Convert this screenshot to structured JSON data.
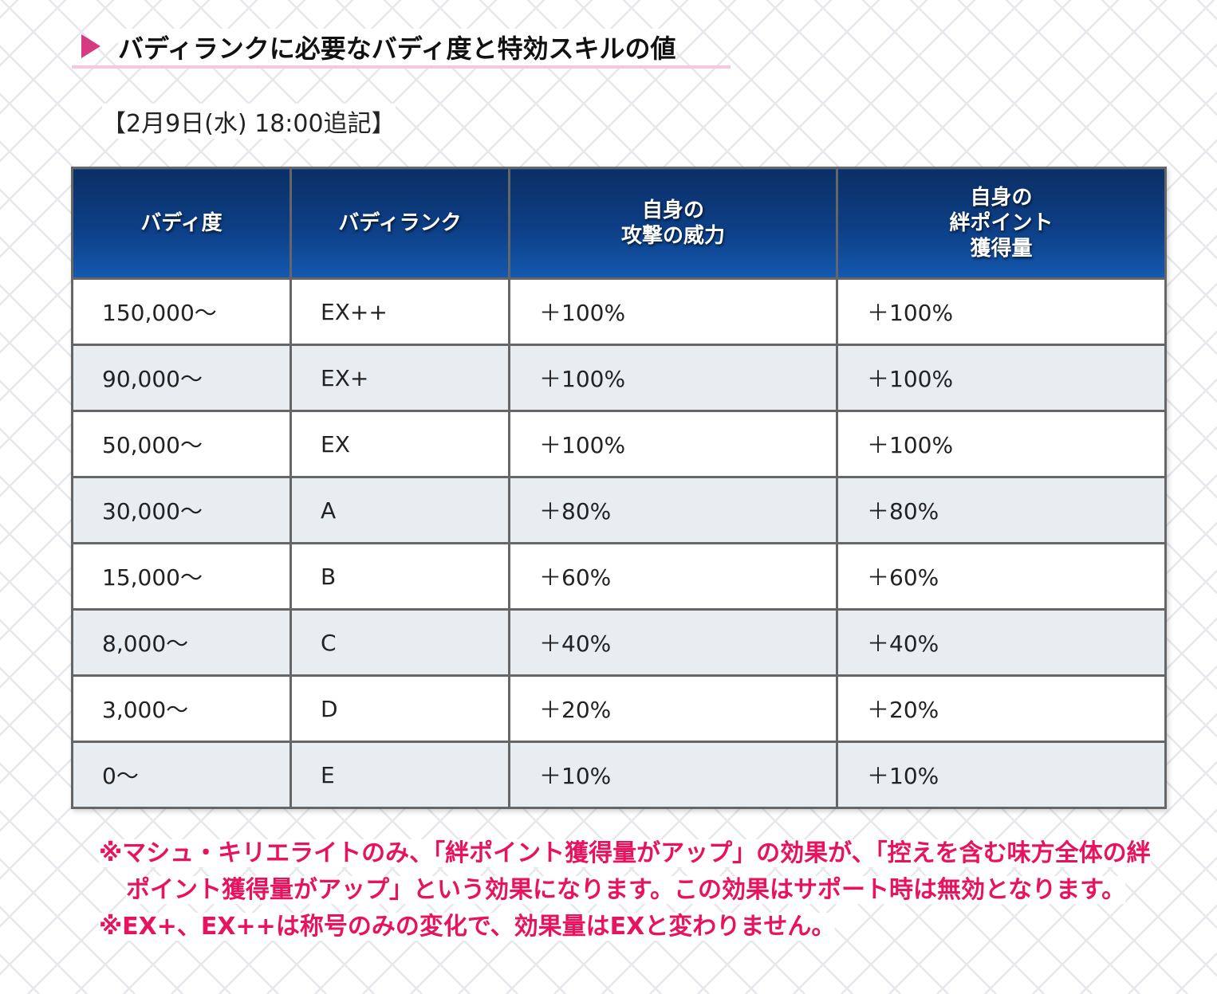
{
  "heading": {
    "title": "バディランクに必要なバディ度と特効スキルの値"
  },
  "update_note": "【2月9日(水) 18:00追記】",
  "table": {
    "headers": [
      [
        "バディ度"
      ],
      [
        "バディランク"
      ],
      [
        "自身の",
        "攻撃の威力"
      ],
      [
        "自身の",
        "絆ポイント",
        "獲得量"
      ]
    ],
    "rows": [
      [
        "150,000〜",
        "EX++",
        "＋100%",
        "＋100%"
      ],
      [
        "90,000〜",
        "EX+",
        "＋100%",
        "＋100%"
      ],
      [
        "50,000〜",
        "EX",
        "＋100%",
        "＋100%"
      ],
      [
        "30,000〜",
        "A",
        "＋80%",
        "＋80%"
      ],
      [
        "15,000〜",
        "B",
        "＋60%",
        "＋60%"
      ],
      [
        "8,000〜",
        "C",
        "＋40%",
        "＋40%"
      ],
      [
        "3,000〜",
        "D",
        "＋20%",
        "＋20%"
      ],
      [
        "0〜",
        "E",
        "＋10%",
        "＋10%"
      ]
    ]
  },
  "notes": [
    "※マシュ・キリエライトのみ、「絆ポイント獲得量がアップ」の効果が、「控えを含む味方全体の絆ポイント獲得量がアップ」という効果になります。この効果はサポート時は無効となります。",
    "※EX+、EX++は称号のみの変化で、効果量はEXと変わりません。"
  ],
  "colors": {
    "header_bg": "#0d3f86",
    "accent_pink": "#d63a82",
    "note_text": "#e8135e",
    "row_alt": "#e8edf2"
  }
}
